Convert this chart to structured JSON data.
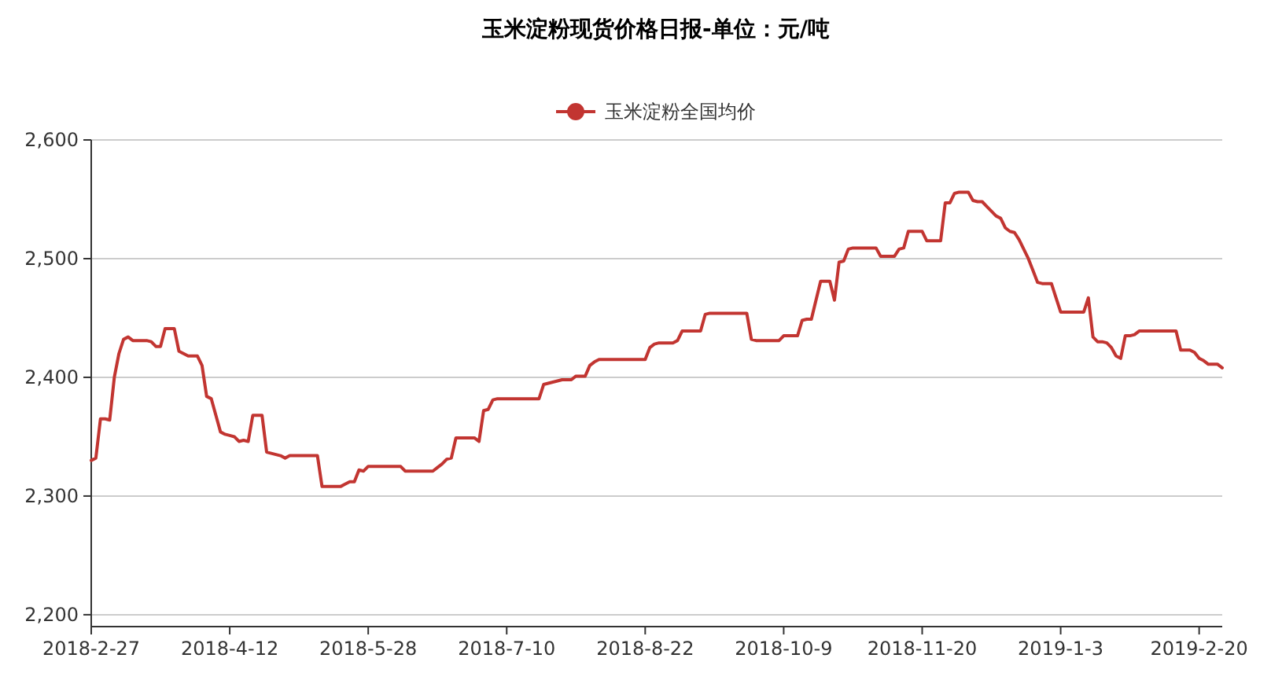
{
  "chart_data": {
    "type": "line",
    "title": "玉米淀粉现货价格日报-单位：元/吨",
    "categories": [
      "2018-2-27",
      null,
      null,
      null,
      null,
      null,
      null,
      null,
      null,
      null,
      null,
      null,
      null,
      null,
      null,
      null,
      null,
      null,
      null,
      null,
      null,
      null,
      null,
      null,
      null,
      null,
      null,
      null,
      null,
      null,
      "2018-4-12",
      null,
      null,
      null,
      null,
      null,
      null,
      null,
      null,
      null,
      null,
      null,
      null,
      null,
      null,
      null,
      null,
      null,
      null,
      null,
      null,
      null,
      null,
      null,
      null,
      null,
      null,
      null,
      null,
      null,
      "2018-5-28",
      null,
      null,
      null,
      null,
      null,
      null,
      null,
      null,
      null,
      null,
      null,
      null,
      null,
      null,
      null,
      null,
      null,
      null,
      null,
      null,
      null,
      null,
      null,
      null,
      null,
      null,
      null,
      null,
      null,
      "2018-7-10",
      null,
      null,
      null,
      null,
      null,
      null,
      null,
      null,
      null,
      null,
      null,
      null,
      null,
      null,
      null,
      null,
      null,
      null,
      null,
      null,
      null,
      null,
      null,
      null,
      null,
      null,
      null,
      null,
      null,
      "2018-8-22",
      null,
      null,
      null,
      null,
      null,
      null,
      null,
      null,
      null,
      null,
      null,
      null,
      null,
      null,
      null,
      null,
      null,
      null,
      null,
      null,
      null,
      null,
      null,
      null,
      null,
      null,
      null,
      null,
      null,
      "2018-10-9",
      null,
      null,
      null,
      null,
      null,
      null,
      null,
      null,
      null,
      null,
      null,
      null,
      null,
      null,
      null,
      null,
      null,
      null,
      null,
      null,
      null,
      null,
      null,
      null,
      null,
      null,
      null,
      null,
      null,
      "2018-11-20",
      null,
      null,
      null,
      null,
      null,
      null,
      null,
      null,
      null,
      null,
      null,
      null,
      null,
      null,
      null,
      null,
      null,
      null,
      null,
      null,
      null,
      null,
      null,
      null,
      null,
      null,
      null,
      null,
      null,
      "2019-1-3",
      null,
      null,
      null,
      null,
      null,
      null,
      null,
      null,
      null,
      null,
      null,
      null,
      null,
      null,
      null,
      null,
      null,
      null,
      null,
      null,
      null,
      null,
      null,
      null,
      null,
      null,
      null,
      null,
      null,
      "2019-2-20",
      null,
      null,
      null,
      null,
      null
    ],
    "series": [
      {
        "name": "玉米淀粉全国均价",
        "color": "#c23531",
        "values": [
          2330,
          2332,
          2365,
          2365,
          2364,
          2400,
          2420,
          2432,
          2434,
          2431,
          2431,
          2431,
          2431,
          2430,
          2426,
          2426,
          2441,
          2441,
          2441,
          2422,
          2420,
          2418,
          2418,
          2418,
          2410,
          2384,
          2382,
          2368,
          2354,
          2352,
          2351,
          2350,
          2346,
          2347,
          2346,
          2368,
          2368,
          2368,
          2337,
          2336,
          2335,
          2334,
          2332,
          2334,
          2334,
          2334,
          2334,
          2334,
          2334,
          2334,
          2308,
          2308,
          2308,
          2308,
          2308,
          2310,
          2312,
          2312,
          2322,
          2321,
          2325,
          2325,
          2325,
          2325,
          2325,
          2325,
          2325,
          2325,
          2321,
          2321,
          2321,
          2321,
          2321,
          2321,
          2321,
          2324,
          2327,
          2331,
          2332,
          2349,
          2349,
          2349,
          2349,
          2349,
          2346,
          2372,
          2373,
          2381,
          2382,
          2382,
          2382,
          2382,
          2382,
          2382,
          2382,
          2382,
          2382,
          2382,
          2394,
          2395,
          2396,
          2397,
          2398,
          2398,
          2398,
          2401,
          2401,
          2401,
          2410,
          2413,
          2415,
          2415,
          2415,
          2415,
          2415,
          2415,
          2415,
          2415,
          2415,
          2415,
          2415,
          2425,
          2428,
          2429,
          2429,
          2429,
          2429,
          2431,
          2439,
          2439,
          2439,
          2439,
          2439,
          2453,
          2454,
          2454,
          2454,
          2454,
          2454,
          2454,
          2454,
          2454,
          2454,
          2432,
          2431,
          2431,
          2431,
          2431,
          2431,
          2431,
          2435,
          2435,
          2435,
          2435,
          2448,
          2449,
          2449,
          2465,
          2481,
          2481,
          2481,
          2465,
          2497,
          2498,
          2508,
          2509,
          2509,
          2509,
          2509,
          2509,
          2509,
          2502,
          2502,
          2502,
          2502,
          2508,
          2509,
          2523,
          2523,
          2523,
          2523,
          2515,
          2515,
          2515,
          2515,
          2547,
          2547,
          2555,
          2556,
          2556,
          2556,
          2549,
          2548,
          2548,
          2544,
          2540,
          2536,
          2534,
          2526,
          2523,
          2522,
          2516,
          2508,
          2500,
          2490,
          2480,
          2479,
          2479,
          2479,
          2467,
          2455,
          2455,
          2455,
          2455,
          2455,
          2455,
          2467,
          2434,
          2430,
          2430,
          2429,
          2425,
          2418,
          2416,
          2435,
          2435,
          2436,
          2439,
          2439,
          2439,
          2439,
          2439,
          2439,
          2439,
          2439,
          2439,
          2423,
          2423,
          2423,
          2421,
          2416,
          2414,
          2411,
          2411,
          2411,
          2408
        ]
      }
    ],
    "ylim": [
      2190,
      2600
    ],
    "yticks": [
      {
        "value": 2200,
        "label": "2,200"
      },
      {
        "value": 2300,
        "label": "2,300"
      },
      {
        "value": 2400,
        "label": "2,400"
      },
      {
        "value": 2500,
        "label": "2,500"
      },
      {
        "value": 2600,
        "label": "2,600"
      }
    ],
    "grid": "y",
    "legend": "top"
  }
}
